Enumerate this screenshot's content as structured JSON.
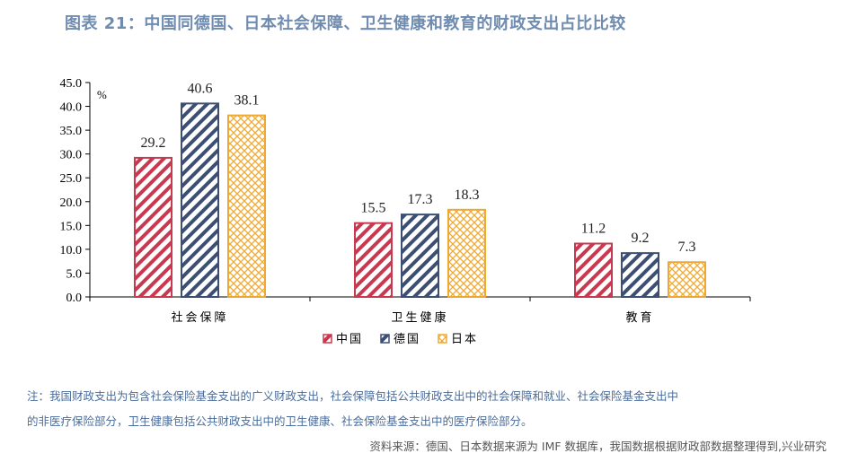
{
  "title": "图表 21：中国同德国、日本社会保障、卫生健康和教育的财政支出占比比较",
  "chart_data": {
    "type": "bar",
    "categories": [
      "社会保障",
      "卫生健康",
      "教育"
    ],
    "series": [
      {
        "name": "中国",
        "values": [
          29.2,
          15.5,
          11.2
        ]
      },
      {
        "name": "德国",
        "values": [
          40.6,
          17.3,
          9.2
        ]
      },
      {
        "name": "日本",
        "values": [
          38.1,
          18.3,
          7.3
        ]
      }
    ],
    "unit": "%",
    "ylim": [
      0,
      45
    ],
    "yticks": [
      "0.0",
      "5.0",
      "10.0",
      "15.0",
      "20.0",
      "25.0",
      "30.0",
      "35.0",
      "40.0",
      "45.0"
    ],
    "value_labels": [
      [
        "29.2",
        "15.5",
        "11.2"
      ],
      [
        "40.6",
        "17.3",
        "9.2"
      ],
      [
        "38.1",
        "18.3",
        "7.3"
      ]
    ],
    "colors": [
      "#c8384e",
      "#3c4f73",
      "#f0a830"
    ],
    "legend_position": "bottom-center"
  },
  "note_line1": "注：我国财政支出为包含社会保险基金支出的广义财政支出，社会保障包括公共财政支出中的社会保障和就业、社会保险基金支出中",
  "note_line2": "的非医疗保险部分，卫生健康包括公共财政支出中的卫生健康、社会保险基金支出中的医疗保险部分。",
  "source": "资料来源：德国、日本数据来源为 IMF 数据库，我国数据根据财政部数据整理得到,兴业研究"
}
